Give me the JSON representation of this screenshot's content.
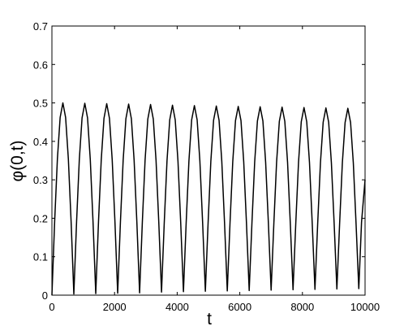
{
  "chart_data": {
    "type": "line",
    "xlabel": "t",
    "ylabel": "φ(0,t)",
    "color": "#000000",
    "x": [
      0,
      87.5,
      175,
      262.5,
      350,
      437.5,
      525,
      612.5,
      700,
      787.5,
      875,
      962.5,
      1050,
      1137.5,
      1225,
      1312.5,
      1400,
      1487.5,
      1575,
      1662.5,
      1750,
      1837.5,
      1925,
      2012.5,
      2100,
      2187.5,
      2275,
      2362.5,
      2450,
      2537.5,
      2625,
      2712.5,
      2800,
      2887.5,
      2975,
      3062.5,
      3150,
      3237.5,
      3325,
      3412.5,
      3500,
      3587.5,
      3675,
      3762.5,
      3850,
      3937.5,
      4025,
      4112.5,
      4200,
      4287.5,
      4375,
      4462.5,
      4550,
      4637.5,
      4725,
      4812.5,
      4900,
      4987.5,
      5075,
      5162.5,
      5250,
      5337.5,
      5425,
      5512.5,
      5600,
      5687.5,
      5775,
      5862.5,
      5950,
      6037.5,
      6125,
      6212.5,
      6300,
      6387.5,
      6475,
      6562.5,
      6650,
      6737.5,
      6825,
      6912.5,
      7000,
      7087.5,
      7175,
      7262.5,
      7350,
      7437.5,
      7525,
      7612.5,
      7700,
      7787.5,
      7875,
      7962.5,
      8050,
      8137.5,
      8225,
      8312.5,
      8400,
      8487.5,
      8575,
      8662.5,
      8750,
      8837.5,
      8925,
      9012.5,
      9100,
      9187.5,
      9275,
      9362.5,
      9450,
      9537.5,
      9625,
      9712.5,
      9800,
      9887.5,
      10000
    ],
    "values": [
      0,
      0.192,
      0.354,
      0.462,
      0.5,
      0.462,
      0.354,
      0.192,
      0.003,
      0.191,
      0.353,
      0.461,
      0.499,
      0.461,
      0.353,
      0.191,
      0.004,
      0.191,
      0.352,
      0.46,
      0.498,
      0.46,
      0.352,
      0.191,
      0.005,
      0.19,
      0.351,
      0.459,
      0.497,
      0.459,
      0.351,
      0.19,
      0.006,
      0.19,
      0.351,
      0.458,
      0.496,
      0.458,
      0.351,
      0.19,
      0.008,
      0.189,
      0.349,
      0.456,
      0.494,
      0.456,
      0.349,
      0.189,
      0.009,
      0.189,
      0.349,
      0.456,
      0.493,
      0.456,
      0.349,
      0.189,
      0.01,
      0.188,
      0.348,
      0.455,
      0.492,
      0.455,
      0.348,
      0.188,
      0.011,
      0.188,
      0.347,
      0.454,
      0.491,
      0.454,
      0.347,
      0.188,
      0.012,
      0.188,
      0.346,
      0.453,
      0.49,
      0.453,
      0.346,
      0.188,
      0.013,
      0.187,
      0.346,
      0.452,
      0.489,
      0.452,
      0.346,
      0.187,
      0.014,
      0.187,
      0.345,
      0.451,
      0.488,
      0.451,
      0.345,
      0.187,
      0.015,
      0.187,
      0.344,
      0.45,
      0.487,
      0.45,
      0.344,
      0.187,
      0.016,
      0.186,
      0.344,
      0.449,
      0.486,
      0.449,
      0.344,
      0.186,
      0.017,
      0.19,
      0.3
    ],
    "xlim": [
      0,
      10000
    ],
    "xticks": [
      0,
      2000,
      4000,
      6000,
      8000,
      10000
    ],
    "ylim": [
      0,
      0.7
    ],
    "yticks": [
      0,
      0.1,
      0.2,
      0.3,
      0.4,
      0.5,
      0.6,
      0.7
    ]
  }
}
